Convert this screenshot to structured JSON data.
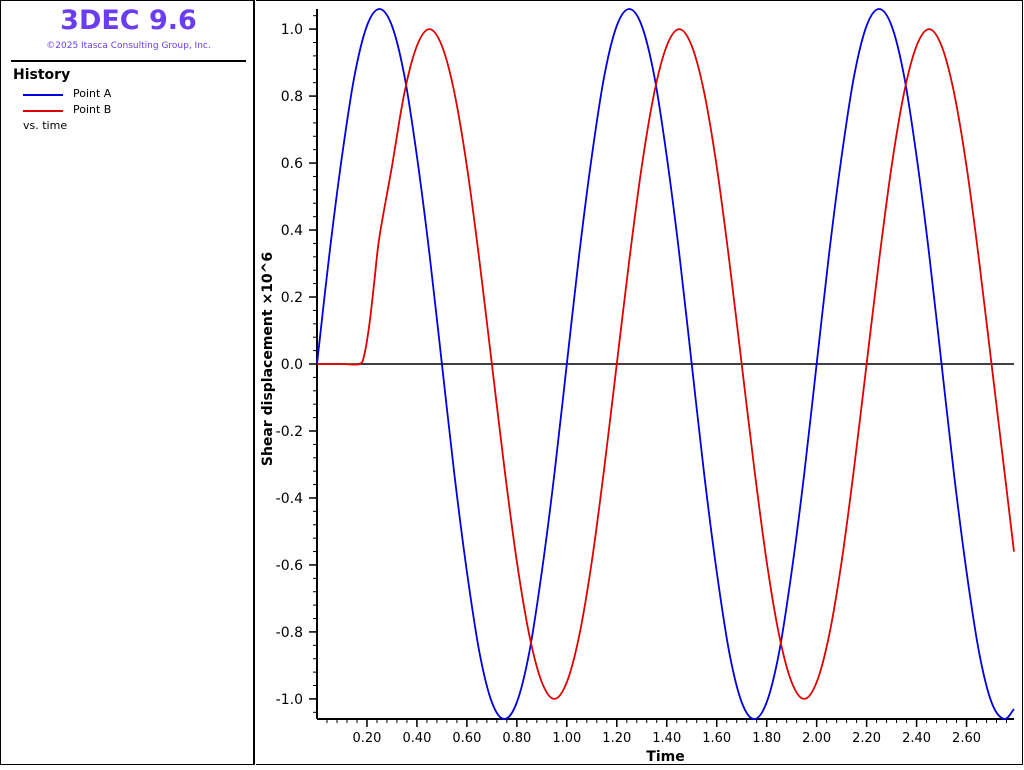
{
  "header": {
    "app_title": "3DEC 9.6",
    "copyright": "©2025 Itasca Consulting Group, Inc."
  },
  "legend": {
    "heading": "History",
    "entries": [
      {
        "label": "Point A",
        "color": "#0000e0"
      },
      {
        "label": "Point B",
        "color": "#e00000"
      }
    ],
    "vs_label": "vs. time"
  },
  "colors": {
    "title_accent": "#6a3df2",
    "axis": "#000000"
  },
  "chart_data": {
    "type": "line",
    "xlabel": "Time",
    "ylabel": "Shear displacement  ×10^6",
    "xlim": [
      0.0,
      2.79
    ],
    "ylim": [
      -1.06,
      1.06
    ],
    "x_ticks": [
      "0.20",
      "0.40",
      "0.60",
      "0.80",
      "1.00",
      "1.20",
      "1.40",
      "1.60",
      "1.80",
      "2.00",
      "2.20",
      "2.40",
      "2.60"
    ],
    "y_ticks": [
      "1.0",
      "0.8",
      "0.6",
      "0.4",
      "0.2",
      "0.0",
      "-0.2",
      "-0.4",
      "-0.6",
      "-0.8",
      "-1.0"
    ],
    "zero_line": true,
    "grid": false,
    "series": [
      {
        "name": "Point A",
        "color": "#0000e0",
        "x": [
          0.0,
          0.05,
          0.1,
          0.15,
          0.2,
          0.25,
          0.3,
          0.35,
          0.4,
          0.45,
          0.5,
          0.55,
          0.6,
          0.65,
          0.7,
          0.75,
          0.8,
          0.85,
          0.9,
          0.95,
          1.0,
          1.05,
          1.1,
          1.15,
          1.2,
          1.25,
          1.3,
          1.35,
          1.4,
          1.45,
          1.5,
          1.55,
          1.6,
          1.65,
          1.7,
          1.75,
          1.8,
          1.85,
          1.9,
          1.95,
          2.0,
          2.05,
          2.1,
          2.15,
          2.2,
          2.25,
          2.3,
          2.35,
          2.4,
          2.45,
          2.5,
          2.55,
          2.6,
          2.65,
          2.7,
          2.75,
          2.79
        ],
        "y": [
          0.0,
          0.33,
          0.62,
          0.86,
          1.01,
          1.06,
          1.01,
          0.86,
          0.62,
          0.33,
          0.0,
          -0.33,
          -0.62,
          -0.86,
          -1.01,
          -1.06,
          -1.01,
          -0.86,
          -0.62,
          -0.33,
          0.0,
          0.33,
          0.62,
          0.86,
          1.01,
          1.06,
          1.01,
          0.86,
          0.62,
          0.33,
          0.0,
          -0.33,
          -0.62,
          -0.86,
          -1.01,
          -1.06,
          -1.01,
          -0.86,
          -0.62,
          -0.33,
          0.0,
          0.33,
          0.62,
          0.86,
          1.01,
          1.06,
          1.01,
          0.86,
          0.62,
          0.33,
          0.0,
          -0.33,
          -0.62,
          -0.86,
          -1.01,
          -1.06,
          -1.03
        ]
      },
      {
        "name": "Point B",
        "color": "#e00000",
        "x": [
          0.0,
          0.1,
          0.17,
          0.19,
          0.21,
          0.23,
          0.25,
          0.3,
          0.35,
          0.4,
          0.45,
          0.5,
          0.55,
          0.6,
          0.65,
          0.7,
          0.75,
          0.8,
          0.85,
          0.9,
          0.95,
          1.0,
          1.05,
          1.1,
          1.15,
          1.2,
          1.25,
          1.3,
          1.35,
          1.4,
          1.45,
          1.5,
          1.55,
          1.6,
          1.65,
          1.7,
          1.75,
          1.8,
          1.85,
          1.9,
          1.95,
          2.0,
          2.05,
          2.1,
          2.15,
          2.2,
          2.25,
          2.3,
          2.35,
          2.4,
          2.45,
          2.5,
          2.55,
          2.6,
          2.65,
          2.7,
          2.75,
          2.79
        ],
        "y": [
          0.0,
          0.0,
          0.0,
          0.03,
          0.12,
          0.25,
          0.38,
          0.59,
          0.81,
          0.95,
          1.0,
          0.95,
          0.81,
          0.59,
          0.31,
          0.0,
          -0.31,
          -0.59,
          -0.81,
          -0.95,
          -1.0,
          -0.95,
          -0.81,
          -0.59,
          -0.31,
          0.0,
          0.31,
          0.59,
          0.81,
          0.95,
          1.0,
          0.95,
          0.81,
          0.59,
          0.31,
          0.0,
          -0.31,
          -0.59,
          -0.81,
          -0.95,
          -1.0,
          -0.95,
          -0.81,
          -0.59,
          -0.31,
          0.0,
          0.31,
          0.59,
          0.81,
          0.95,
          1.0,
          0.95,
          0.81,
          0.59,
          0.31,
          0.0,
          -0.31,
          -0.56
        ]
      }
    ]
  }
}
